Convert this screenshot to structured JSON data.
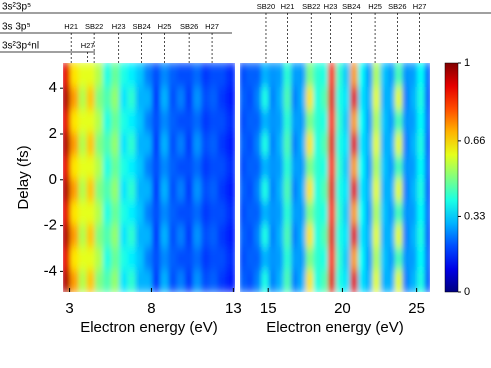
{
  "chart_data": [
    {
      "type": "heatmap",
      "xlabel": "Electron energy (eV)",
      "ylabel": "Delay (fs)",
      "xlim": [
        2.6,
        13.1
      ],
      "ylim": [
        -4.9,
        5.1
      ],
      "xticks": [
        3,
        8,
        13
      ],
      "yticks": [
        -4,
        -2,
        0,
        2,
        4
      ],
      "x": [
        2.85,
        3.35,
        3.85,
        4.35,
        4.85,
        5.35,
        5.85,
        6.35,
        6.85,
        7.35,
        7.85,
        8.35,
        8.85,
        9.35,
        9.85,
        10.35,
        10.85,
        11.35,
        11.85,
        12.35,
        12.85
      ],
      "y": [
        -4.4,
        -3.4,
        -2.4,
        -1.4,
        -0.4,
        0.6,
        1.6,
        2.6,
        3.6,
        4.6
      ],
      "z": [
        [
          0.95,
          0.72,
          0.55,
          0.68,
          0.5,
          0.45,
          0.52,
          0.35,
          0.42,
          0.3,
          0.3,
          0.18,
          0.3,
          0.2,
          0.25,
          0.18,
          0.27,
          0.2,
          0.22,
          0.18,
          0.15
        ],
        [
          0.9,
          0.65,
          0.6,
          0.6,
          0.55,
          0.4,
          0.48,
          0.4,
          0.36,
          0.32,
          0.25,
          0.2,
          0.26,
          0.22,
          0.2,
          0.2,
          0.23,
          0.18,
          0.2,
          0.2,
          0.17
        ],
        [
          0.95,
          0.72,
          0.55,
          0.68,
          0.5,
          0.45,
          0.52,
          0.35,
          0.42,
          0.3,
          0.3,
          0.18,
          0.3,
          0.2,
          0.25,
          0.18,
          0.27,
          0.2,
          0.22,
          0.18,
          0.15
        ],
        [
          0.9,
          0.65,
          0.6,
          0.6,
          0.55,
          0.4,
          0.48,
          0.4,
          0.36,
          0.32,
          0.25,
          0.2,
          0.26,
          0.22,
          0.2,
          0.2,
          0.23,
          0.18,
          0.2,
          0.2,
          0.17
        ],
        [
          0.95,
          0.72,
          0.55,
          0.68,
          0.5,
          0.45,
          0.52,
          0.35,
          0.42,
          0.3,
          0.3,
          0.18,
          0.3,
          0.2,
          0.25,
          0.18,
          0.27,
          0.2,
          0.22,
          0.18,
          0.15
        ],
        [
          0.9,
          0.65,
          0.6,
          0.6,
          0.55,
          0.4,
          0.48,
          0.4,
          0.36,
          0.32,
          0.25,
          0.2,
          0.26,
          0.22,
          0.2,
          0.2,
          0.23,
          0.18,
          0.2,
          0.2,
          0.17
        ],
        [
          0.95,
          0.72,
          0.55,
          0.68,
          0.5,
          0.45,
          0.52,
          0.35,
          0.42,
          0.3,
          0.3,
          0.18,
          0.3,
          0.2,
          0.25,
          0.18,
          0.27,
          0.2,
          0.22,
          0.18,
          0.15
        ],
        [
          0.9,
          0.65,
          0.6,
          0.6,
          0.55,
          0.4,
          0.48,
          0.4,
          0.36,
          0.32,
          0.25,
          0.2,
          0.26,
          0.22,
          0.2,
          0.2,
          0.23,
          0.18,
          0.2,
          0.2,
          0.17
        ],
        [
          0.95,
          0.72,
          0.55,
          0.68,
          0.5,
          0.45,
          0.52,
          0.35,
          0.42,
          0.3,
          0.3,
          0.18,
          0.3,
          0.2,
          0.25,
          0.18,
          0.27,
          0.2,
          0.22,
          0.18,
          0.15
        ],
        [
          0.9,
          0.65,
          0.6,
          0.6,
          0.55,
          0.4,
          0.48,
          0.4,
          0.36,
          0.32,
          0.25,
          0.2,
          0.26,
          0.22,
          0.2,
          0.2,
          0.23,
          0.18,
          0.2,
          0.2,
          0.17
        ]
      ]
    },
    {
      "type": "heatmap",
      "xlabel": "Electron energy (eV)",
      "xlim": [
        13.1,
        25.9
      ],
      "ylim": [
        -4.9,
        5.1
      ],
      "xticks": [
        15,
        20,
        25
      ],
      "x": [
        13.35,
        13.85,
        14.35,
        14.85,
        15.35,
        15.85,
        16.35,
        16.85,
        17.35,
        17.85,
        18.35,
        18.85,
        19.35,
        19.85,
        20.35,
        20.85,
        21.35,
        21.85,
        22.35,
        22.85,
        23.35,
        23.85,
        24.35,
        24.85,
        25.35,
        25.85
      ],
      "y": [
        -4.4,
        -3.4,
        -2.4,
        -1.4,
        -0.4,
        0.6,
        1.6,
        2.6,
        3.6,
        4.6
      ],
      "z": [
        [
          0.22,
          0.2,
          0.25,
          0.4,
          0.25,
          0.3,
          0.45,
          0.25,
          0.3,
          0.65,
          0.4,
          0.45,
          0.9,
          0.4,
          0.35,
          0.9,
          0.35,
          0.3,
          0.6,
          0.3,
          0.3,
          0.6,
          0.25,
          0.3,
          0.4,
          0.2
        ],
        [
          0.2,
          0.22,
          0.22,
          0.3,
          0.27,
          0.28,
          0.42,
          0.28,
          0.28,
          0.5,
          0.42,
          0.4,
          0.85,
          0.42,
          0.32,
          0.72,
          0.38,
          0.28,
          0.55,
          0.32,
          0.28,
          0.45,
          0.27,
          0.28,
          0.38,
          0.22
        ],
        [
          0.22,
          0.2,
          0.25,
          0.4,
          0.25,
          0.3,
          0.45,
          0.25,
          0.3,
          0.65,
          0.4,
          0.45,
          0.9,
          0.4,
          0.35,
          0.9,
          0.35,
          0.3,
          0.6,
          0.3,
          0.3,
          0.6,
          0.25,
          0.3,
          0.4,
          0.2
        ],
        [
          0.2,
          0.22,
          0.22,
          0.3,
          0.27,
          0.28,
          0.42,
          0.28,
          0.28,
          0.5,
          0.42,
          0.4,
          0.85,
          0.42,
          0.32,
          0.72,
          0.38,
          0.28,
          0.55,
          0.32,
          0.28,
          0.45,
          0.27,
          0.28,
          0.38,
          0.22
        ],
        [
          0.22,
          0.2,
          0.25,
          0.4,
          0.25,
          0.3,
          0.45,
          0.25,
          0.3,
          0.65,
          0.4,
          0.45,
          0.9,
          0.4,
          0.35,
          0.9,
          0.35,
          0.3,
          0.6,
          0.3,
          0.3,
          0.6,
          0.25,
          0.3,
          0.4,
          0.2
        ],
        [
          0.2,
          0.22,
          0.22,
          0.3,
          0.27,
          0.28,
          0.42,
          0.28,
          0.28,
          0.5,
          0.42,
          0.4,
          0.85,
          0.42,
          0.32,
          0.72,
          0.38,
          0.28,
          0.55,
          0.32,
          0.28,
          0.45,
          0.27,
          0.28,
          0.38,
          0.22
        ],
        [
          0.22,
          0.2,
          0.25,
          0.4,
          0.25,
          0.3,
          0.45,
          0.25,
          0.3,
          0.65,
          0.4,
          0.45,
          0.9,
          0.4,
          0.35,
          0.9,
          0.35,
          0.3,
          0.6,
          0.3,
          0.3,
          0.6,
          0.25,
          0.3,
          0.4,
          0.2
        ],
        [
          0.2,
          0.22,
          0.22,
          0.3,
          0.27,
          0.28,
          0.42,
          0.28,
          0.28,
          0.5,
          0.42,
          0.4,
          0.85,
          0.42,
          0.32,
          0.72,
          0.38,
          0.28,
          0.55,
          0.32,
          0.28,
          0.45,
          0.27,
          0.28,
          0.38,
          0.22
        ],
        [
          0.22,
          0.2,
          0.25,
          0.4,
          0.25,
          0.3,
          0.45,
          0.25,
          0.3,
          0.65,
          0.4,
          0.45,
          0.9,
          0.4,
          0.35,
          0.9,
          0.35,
          0.3,
          0.6,
          0.3,
          0.3,
          0.6,
          0.25,
          0.3,
          0.4,
          0.2
        ],
        [
          0.2,
          0.22,
          0.22,
          0.3,
          0.27,
          0.28,
          0.42,
          0.28,
          0.28,
          0.5,
          0.42,
          0.4,
          0.85,
          0.42,
          0.32,
          0.72,
          0.38,
          0.28,
          0.55,
          0.32,
          0.28,
          0.45,
          0.27,
          0.28,
          0.38,
          0.22
        ]
      ]
    }
  ],
  "colorbar": {
    "colormap": "jet",
    "zlim": [
      0,
      1
    ],
    "ticks": [
      0,
      0.33,
      0.66,
      1
    ]
  },
  "levels": [
    {
      "label": "3s²3p⁵",
      "markers": [
        {
          "label": "SB20",
          "x": 14.85
        },
        {
          "label": "H21",
          "x": 16.3
        },
        {
          "label": "SB22",
          "x": 17.9
        },
        {
          "label": "H23",
          "x": 19.2
        },
        {
          "label": "SB24",
          "x": 20.6
        },
        {
          "label": "H25",
          "x": 22.2
        },
        {
          "label": "SB26",
          "x": 23.7
        },
        {
          "label": "H27",
          "x": 25.2
        }
      ]
    },
    {
      "label": "3s 3p⁵",
      "markers": [
        {
          "label": "H21",
          "x": 3.1
        },
        {
          "label": "SB22",
          "x": 4.5
        },
        {
          "label": "H23",
          "x": 6.0
        },
        {
          "label": "SB24",
          "x": 7.4
        },
        {
          "label": "H25",
          "x": 8.8
        },
        {
          "label": "SB26",
          "x": 10.3
        },
        {
          "label": "H27",
          "x": 11.7
        }
      ]
    },
    {
      "label": "3s²3p⁴nl",
      "markers": [
        {
          "label": "H27",
          "x": 4.1
        }
      ]
    }
  ]
}
